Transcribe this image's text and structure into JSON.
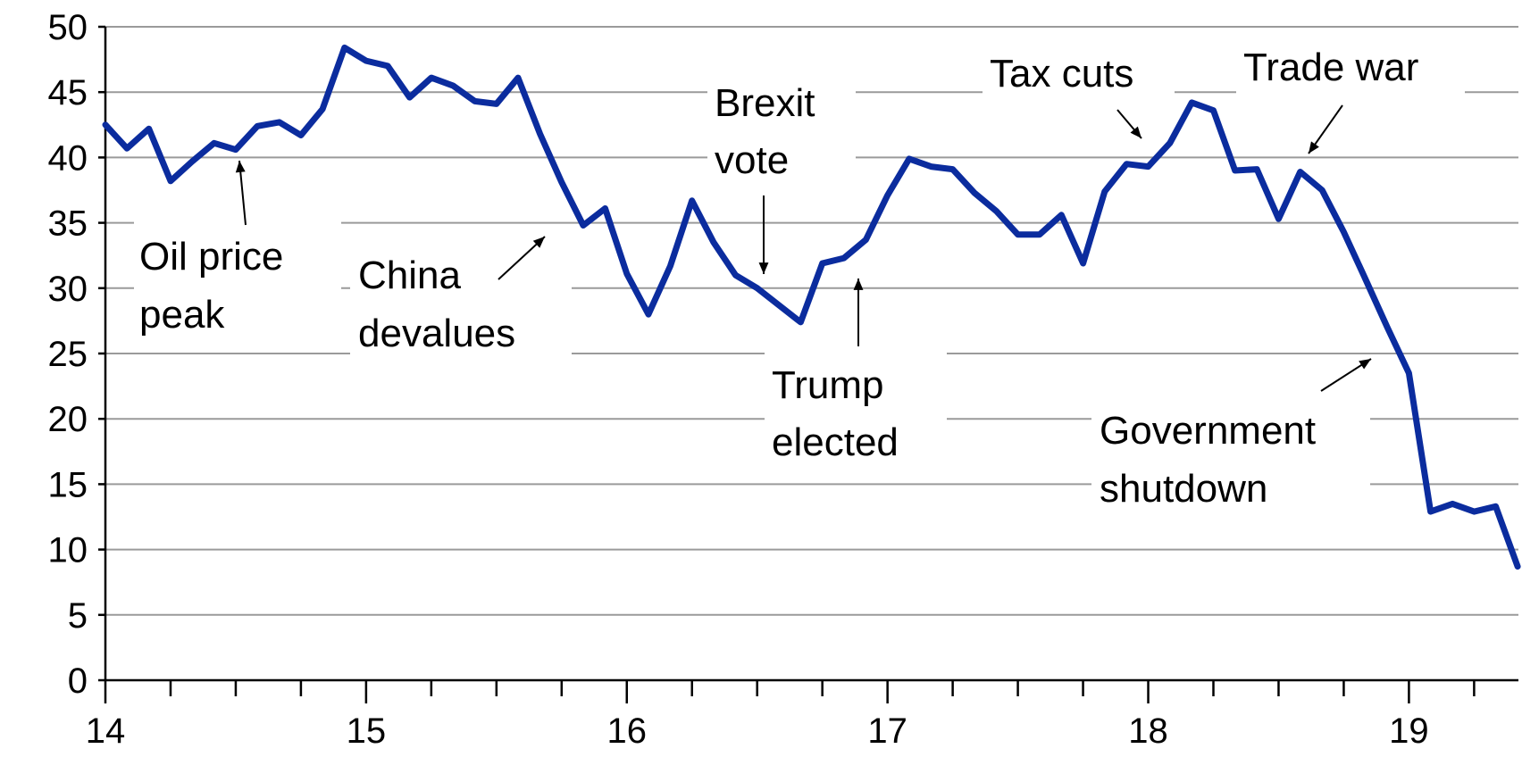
{
  "chart_data": {
    "type": "line",
    "title": "",
    "xlabel": "",
    "ylabel": "",
    "xlim": [
      14.0,
      19.42
    ],
    "ylim": [
      0,
      50
    ],
    "y_ticks": [
      0,
      5,
      10,
      15,
      20,
      25,
      30,
      35,
      40,
      45,
      50
    ],
    "x_ticks": [
      14,
      15,
      16,
      17,
      18,
      19
    ],
    "x_tick_labels": [
      "14",
      "15",
      "16",
      "17",
      "18",
      "19"
    ],
    "minor_ticks_per_year": 4,
    "grid": true,
    "line_color": "#0b2c9e",
    "series": [
      {
        "x": [
          14.0,
          14.083,
          14.167,
          14.25,
          14.333,
          14.417,
          14.5,
          14.583,
          14.667,
          14.75,
          14.833,
          14.917,
          15.0,
          15.083,
          15.167,
          15.25,
          15.333,
          15.417,
          15.5,
          15.583,
          15.667,
          15.75,
          15.833,
          15.917,
          16.0,
          16.083,
          16.167,
          16.25,
          16.333,
          16.417,
          16.5,
          16.583,
          16.667,
          16.75,
          16.833,
          16.917,
          17.0,
          17.083,
          17.167,
          17.25,
          17.333,
          17.417,
          17.5,
          17.583,
          17.667,
          17.75,
          17.833,
          17.917,
          18.0,
          18.083,
          18.167,
          18.25,
          18.333,
          18.417,
          18.5,
          18.583,
          18.667,
          18.75,
          18.833,
          18.917,
          19.0,
          19.083,
          19.167,
          19.25,
          19.333,
          19.417
        ],
        "y": [
          42.5,
          40.7,
          42.2,
          38.2,
          39.7,
          41.1,
          40.6,
          42.4,
          42.7,
          41.7,
          43.7,
          48.4,
          47.4,
          47.0,
          44.6,
          46.1,
          45.5,
          44.3,
          44.1,
          46.1,
          41.8,
          38.1,
          34.8,
          36.1,
          31.1,
          28.0,
          31.7,
          36.7,
          33.5,
          31.0,
          30.0,
          28.7,
          27.4,
          31.9,
          32.3,
          33.7,
          37.1,
          39.9,
          39.3,
          39.1,
          37.3,
          35.9,
          34.1,
          34.1,
          35.6,
          31.9,
          37.4,
          39.5,
          39.3,
          41.1,
          44.2,
          43.6,
          39.0,
          39.1,
          35.3,
          38.9,
          37.5,
          34.3,
          30.7,
          27.0,
          23.5,
          12.9,
          13.5,
          12.9,
          13.3,
          8.7
        ]
      }
    ],
    "annotations": [
      {
        "lines": [
          "Oil price",
          "peak"
        ]
      },
      {
        "lines": [
          "China",
          "devalues"
        ]
      },
      {
        "lines": [
          "Brexit",
          "vote"
        ]
      },
      {
        "lines": [
          "Trump",
          "elected"
        ]
      },
      {
        "lines": [
          "Tax cuts"
        ]
      },
      {
        "lines": [
          "Trade war"
        ]
      },
      {
        "lines": [
          "Government",
          "shutdown"
        ]
      }
    ]
  }
}
